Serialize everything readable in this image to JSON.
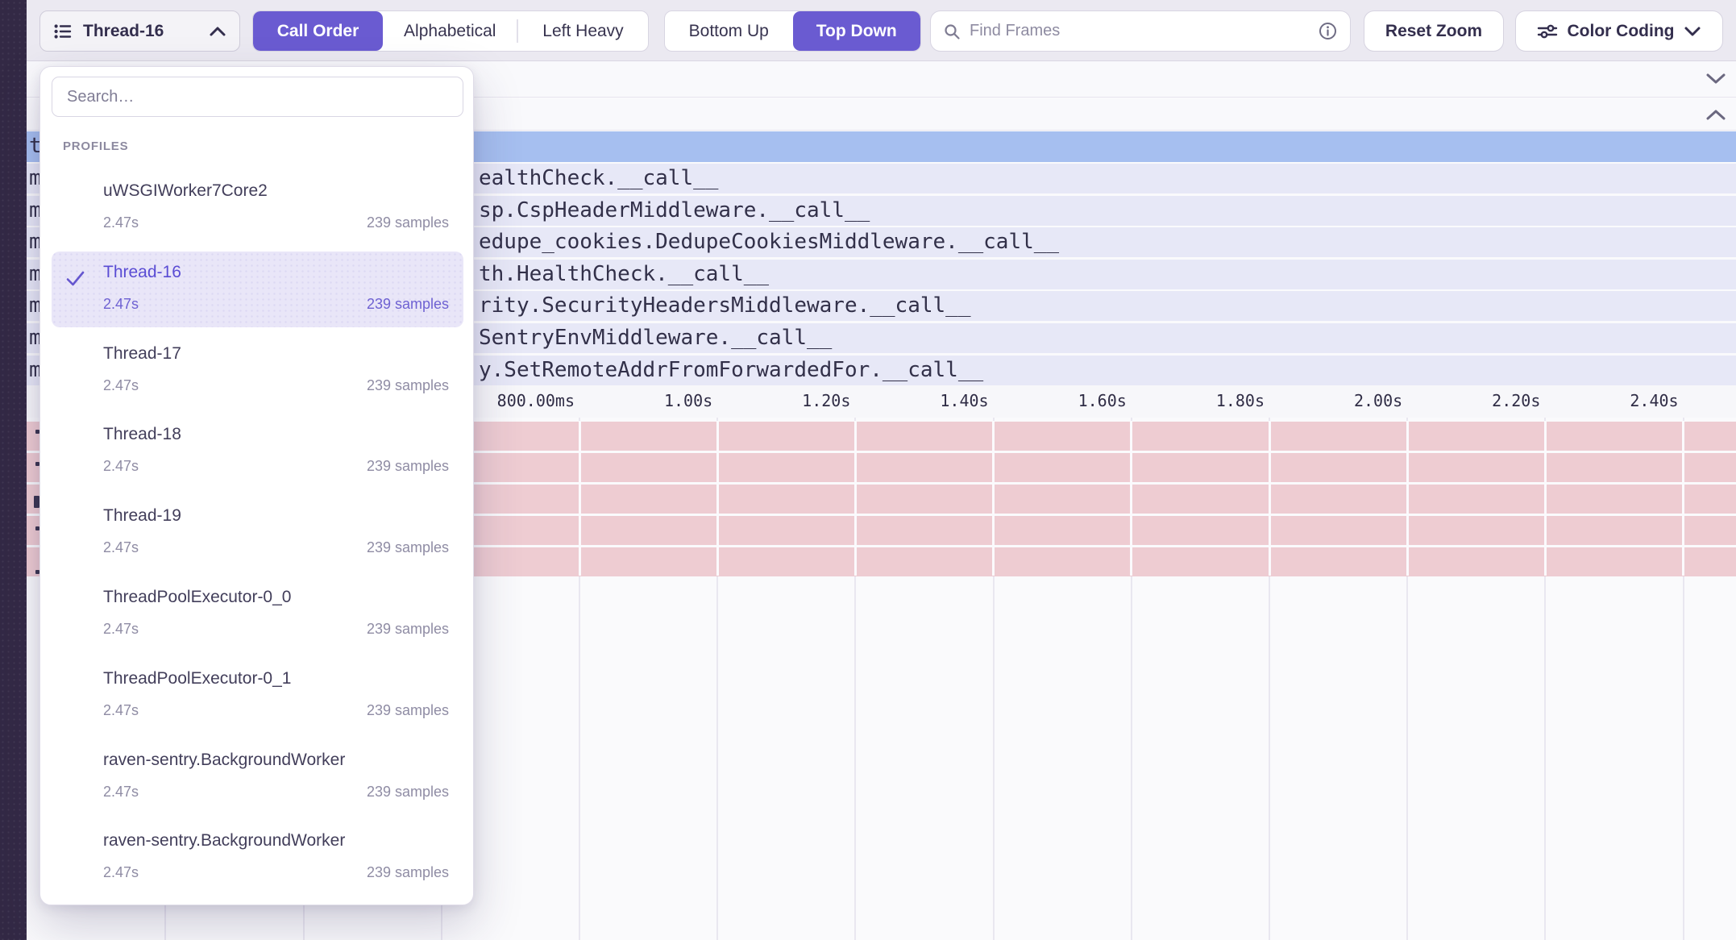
{
  "toolbar": {
    "thread_selector": {
      "label": "Thread-16"
    },
    "sort_control": {
      "options": [
        "Call Order",
        "Alphabetical",
        "Left Heavy"
      ],
      "active": "Call Order"
    },
    "direction_control": {
      "options": [
        "Bottom Up",
        "Top Down"
      ],
      "active": "Top Down"
    },
    "find_frames": {
      "placeholder": "Find Frames"
    },
    "reset_zoom_label": "Reset Zoom",
    "color_coding": {
      "label": "Color Coding"
    }
  },
  "profiles_dropdown": {
    "search_placeholder": "Search…",
    "section_label": "PROFILES",
    "items": [
      {
        "name": "uWSGIWorker7Core2",
        "duration": "2.47s",
        "samples": "239 samples",
        "selected": false
      },
      {
        "name": "Thread-16",
        "duration": "2.47s",
        "samples": "239 samples",
        "selected": true
      },
      {
        "name": "Thread-17",
        "duration": "2.47s",
        "samples": "239 samples",
        "selected": false
      },
      {
        "name": "Thread-18",
        "duration": "2.47s",
        "samples": "239 samples",
        "selected": false
      },
      {
        "name": "Thread-19",
        "duration": "2.47s",
        "samples": "239 samples",
        "selected": false
      },
      {
        "name": "ThreadPoolExecutor-0_0",
        "duration": "2.47s",
        "samples": "239 samples",
        "selected": false
      },
      {
        "name": "ThreadPoolExecutor-0_1",
        "duration": "2.47s",
        "samples": "239 samples",
        "selected": false
      },
      {
        "name": "raven-sentry.BackgroundWorker",
        "duration": "2.47s",
        "samples": "239 samples",
        "selected": false
      },
      {
        "name": "raven-sentry.BackgroundWorker",
        "duration": "2.47s",
        "samples": "239 samples",
        "selected": false
      }
    ]
  },
  "flamegraph": {
    "frame_rows": [
      "ealthCheck.__call__",
      "sp.CspHeaderMiddleware.__call__",
      "edupe_cookies.DedupeCookiesMiddleware.__call__",
      "th.HealthCheck.__call__",
      "rity.SecurityHeadersMiddleware.__call__",
      "SentryEnvMiddleware.__call__",
      "y.SetRemoteAddrFromForwardedFor.__call__"
    ],
    "edge_letters": [
      "t",
      "m",
      "m",
      "m",
      "m",
      "m",
      "m",
      "m"
    ],
    "axis_ticks": [
      "800.00ms",
      "1.00s",
      "1.20s",
      "1.40s",
      "1.60s",
      "1.80s",
      "2.00s",
      "2.20s",
      "2.40s"
    ],
    "lower_row_count": 5
  },
  "colors": {
    "accent_purple": "#6a5bd1",
    "root_row_blue": "#a6bff0",
    "frame_row_lavender": "#e7e8f7",
    "lower_row_pink": "#eeccd2",
    "nav_strip_dark": "#332945",
    "selected_item_bg": "#e9e6f8"
  }
}
